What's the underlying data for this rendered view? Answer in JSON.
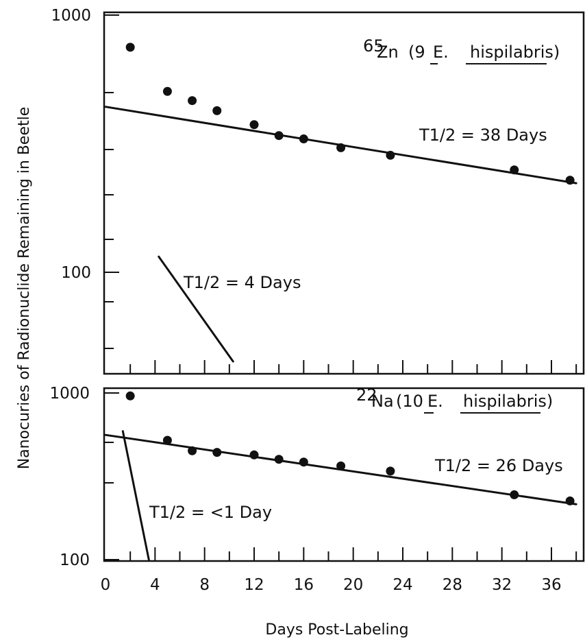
{
  "chart_data": [
    {
      "type": "scatter",
      "panel": "top",
      "y_scale": "log",
      "ylim": [
        45,
        1000
      ],
      "xlim": [
        0,
        38
      ],
      "y_tick_labels": [
        "1000",
        "100"
      ],
      "label_isotope": "65",
      "label_element": "Zn",
      "label_count": "(9",
      "label_species_1": "E.",
      "label_species_2": "hispilabris)",
      "points": [
        {
          "x": 2,
          "y": 750
        },
        {
          "x": 5,
          "y": 505
        },
        {
          "x": 7,
          "y": 465
        },
        {
          "x": 9,
          "y": 425
        },
        {
          "x": 12,
          "y": 375
        },
        {
          "x": 14,
          "y": 340
        },
        {
          "x": 16,
          "y": 330
        },
        {
          "x": 19,
          "y": 305
        },
        {
          "x": 23,
          "y": 285
        },
        {
          "x": 33,
          "y": 250
        },
        {
          "x": 37.5,
          "y": 228
        }
      ],
      "fits": [
        {
          "label": "T1/2 = 38 Days",
          "x": [
            0,
            38
          ],
          "y": [
            440,
            222
          ]
        },
        {
          "label": "T1/2 = 4 Days",
          "x": [
            4.3,
            10.3
          ],
          "y": [
            115,
            45
          ]
        }
      ]
    },
    {
      "type": "scatter",
      "panel": "bottom",
      "y_scale": "log",
      "ylim": [
        100,
        1000
      ],
      "xlim": [
        0,
        38
      ],
      "y_tick_labels": [
        "1000",
        "100"
      ],
      "label_isotope": "22",
      "label_element": "Na",
      "label_count": "(10",
      "label_species_1": "E.",
      "label_species_2": "hispilabris)",
      "points": [
        {
          "x": 2,
          "y": 960
        },
        {
          "x": 5,
          "y": 520
        },
        {
          "x": 7,
          "y": 450
        },
        {
          "x": 9,
          "y": 440
        },
        {
          "x": 12,
          "y": 425
        },
        {
          "x": 14,
          "y": 400
        },
        {
          "x": 16,
          "y": 385
        },
        {
          "x": 19,
          "y": 365
        },
        {
          "x": 23,
          "y": 340
        },
        {
          "x": 33,
          "y": 245
        },
        {
          "x": 37.5,
          "y": 225
        }
      ],
      "fits": [
        {
          "label": "T1/2 = 26 Days",
          "x": [
            0,
            38
          ],
          "y": [
            560,
            215
          ]
        },
        {
          "label": "T1/2 = <1 Day",
          "x": [
            1.4,
            3.5
          ],
          "y": [
            590,
            100
          ]
        }
      ]
    }
  ],
  "x_ticks": [
    0,
    4,
    8,
    12,
    16,
    20,
    24,
    28,
    32,
    36
  ],
  "xlabel": "Days Post-Labeling",
  "ylabel": "Nanocuries of Radionuclide Remaining in Beetle"
}
